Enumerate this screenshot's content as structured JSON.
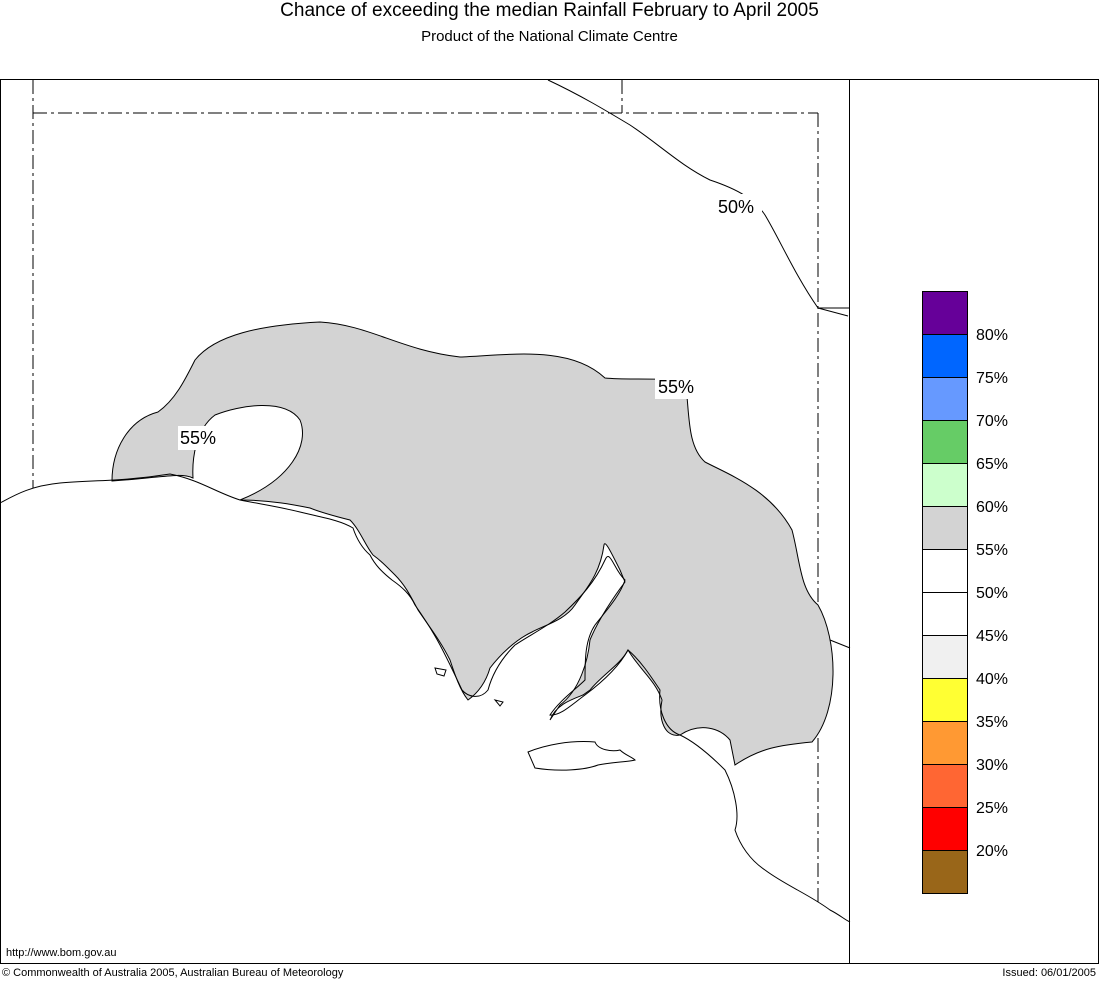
{
  "header": {
    "title": "Chance of exceeding the median Rainfall February to April 2005",
    "subtitle": "Product of the National Climate Centre"
  },
  "map": {
    "contour_labels": [
      "50%",
      "55%",
      "55%"
    ],
    "colors": {
      "land_outline": "#000000",
      "shaded_55_60": "#d3d3d3",
      "background": "#ffffff"
    }
  },
  "legend": {
    "swatches": [
      {
        "color": "#660099"
      },
      {
        "color": "#0066ff"
      },
      {
        "color": "#6699ff"
      },
      {
        "color": "#66cc66"
      },
      {
        "color": "#ccffcc"
      },
      {
        "color": "#d3d3d3"
      },
      {
        "color": "#ffffff"
      },
      {
        "color": "#ffffff"
      },
      {
        "color": "#f0f0f0"
      },
      {
        "color": "#ffff33"
      },
      {
        "color": "#ff9933"
      },
      {
        "color": "#ff6633"
      },
      {
        "color": "#ff0000"
      },
      {
        "color": "#996619"
      }
    ],
    "labels": [
      "80%",
      "75%",
      "70%",
      "65%",
      "60%",
      "55%",
      "50%",
      "45%",
      "40%",
      "35%",
      "30%",
      "25%",
      "20%"
    ]
  },
  "footer": {
    "url": "http://www.bom.gov.au",
    "copyright": "© Commonwealth of Australia 2005, Australian Bureau of Meteorology",
    "issued": "Issued: 06/01/2005"
  }
}
